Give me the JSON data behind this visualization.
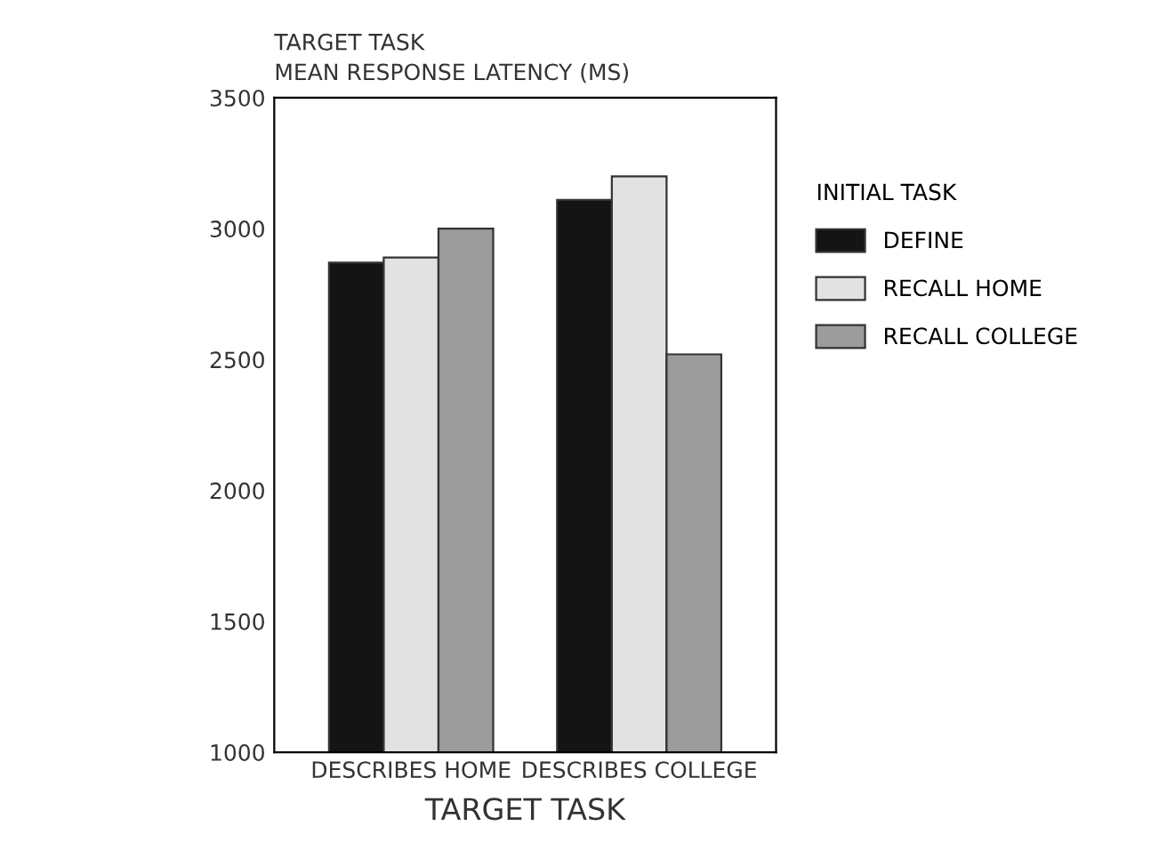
{
  "chart_data": {
    "type": "bar",
    "ylabel": "TARGET TASK\nMEAN RESPONSE LATENCY (MS)",
    "xlabel": "TARGET TASK",
    "legend_title": "INITIAL TASK",
    "categories": [
      "DESCRIBES HOME",
      "DESCRIBES COLLEGE"
    ],
    "series": [
      {
        "name": "DEFINE",
        "color": "#141414",
        "values": [
          2870,
          3110
        ]
      },
      {
        "name": "RECALL HOME",
        "color": "#e2e2e2",
        "values": [
          2890,
          3200
        ]
      },
      {
        "name": "RECALL COLLEGE",
        "color": "#9c9c9c",
        "values": [
          3000,
          2520
        ]
      }
    ],
    "ylim": [
      1000,
      3500
    ],
    "yticks": [
      1000,
      1500,
      2000,
      2500,
      3000,
      3500
    ],
    "legend": "right",
    "grid": false
  }
}
